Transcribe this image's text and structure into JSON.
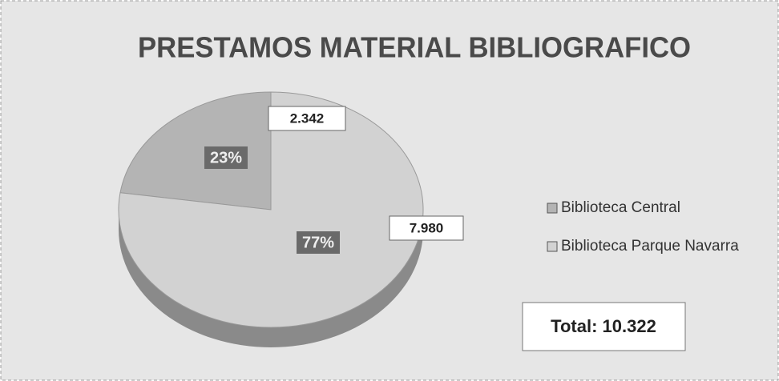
{
  "chart_data": {
    "type": "pie",
    "title": "PRESTAMOS MATERIAL BIBLIOGRAFICO",
    "categories": [
      "Biblioteca Central",
      "Biblioteca Parque Navarra"
    ],
    "values": [
      2342,
      7980
    ],
    "value_labels": [
      "2.342",
      "7.980"
    ],
    "percent_labels": [
      "23%",
      "77%"
    ],
    "colors": [
      "#b4b4b4",
      "#d2d2d2"
    ],
    "total_label": "Total: 10.322",
    "legend": "right"
  }
}
